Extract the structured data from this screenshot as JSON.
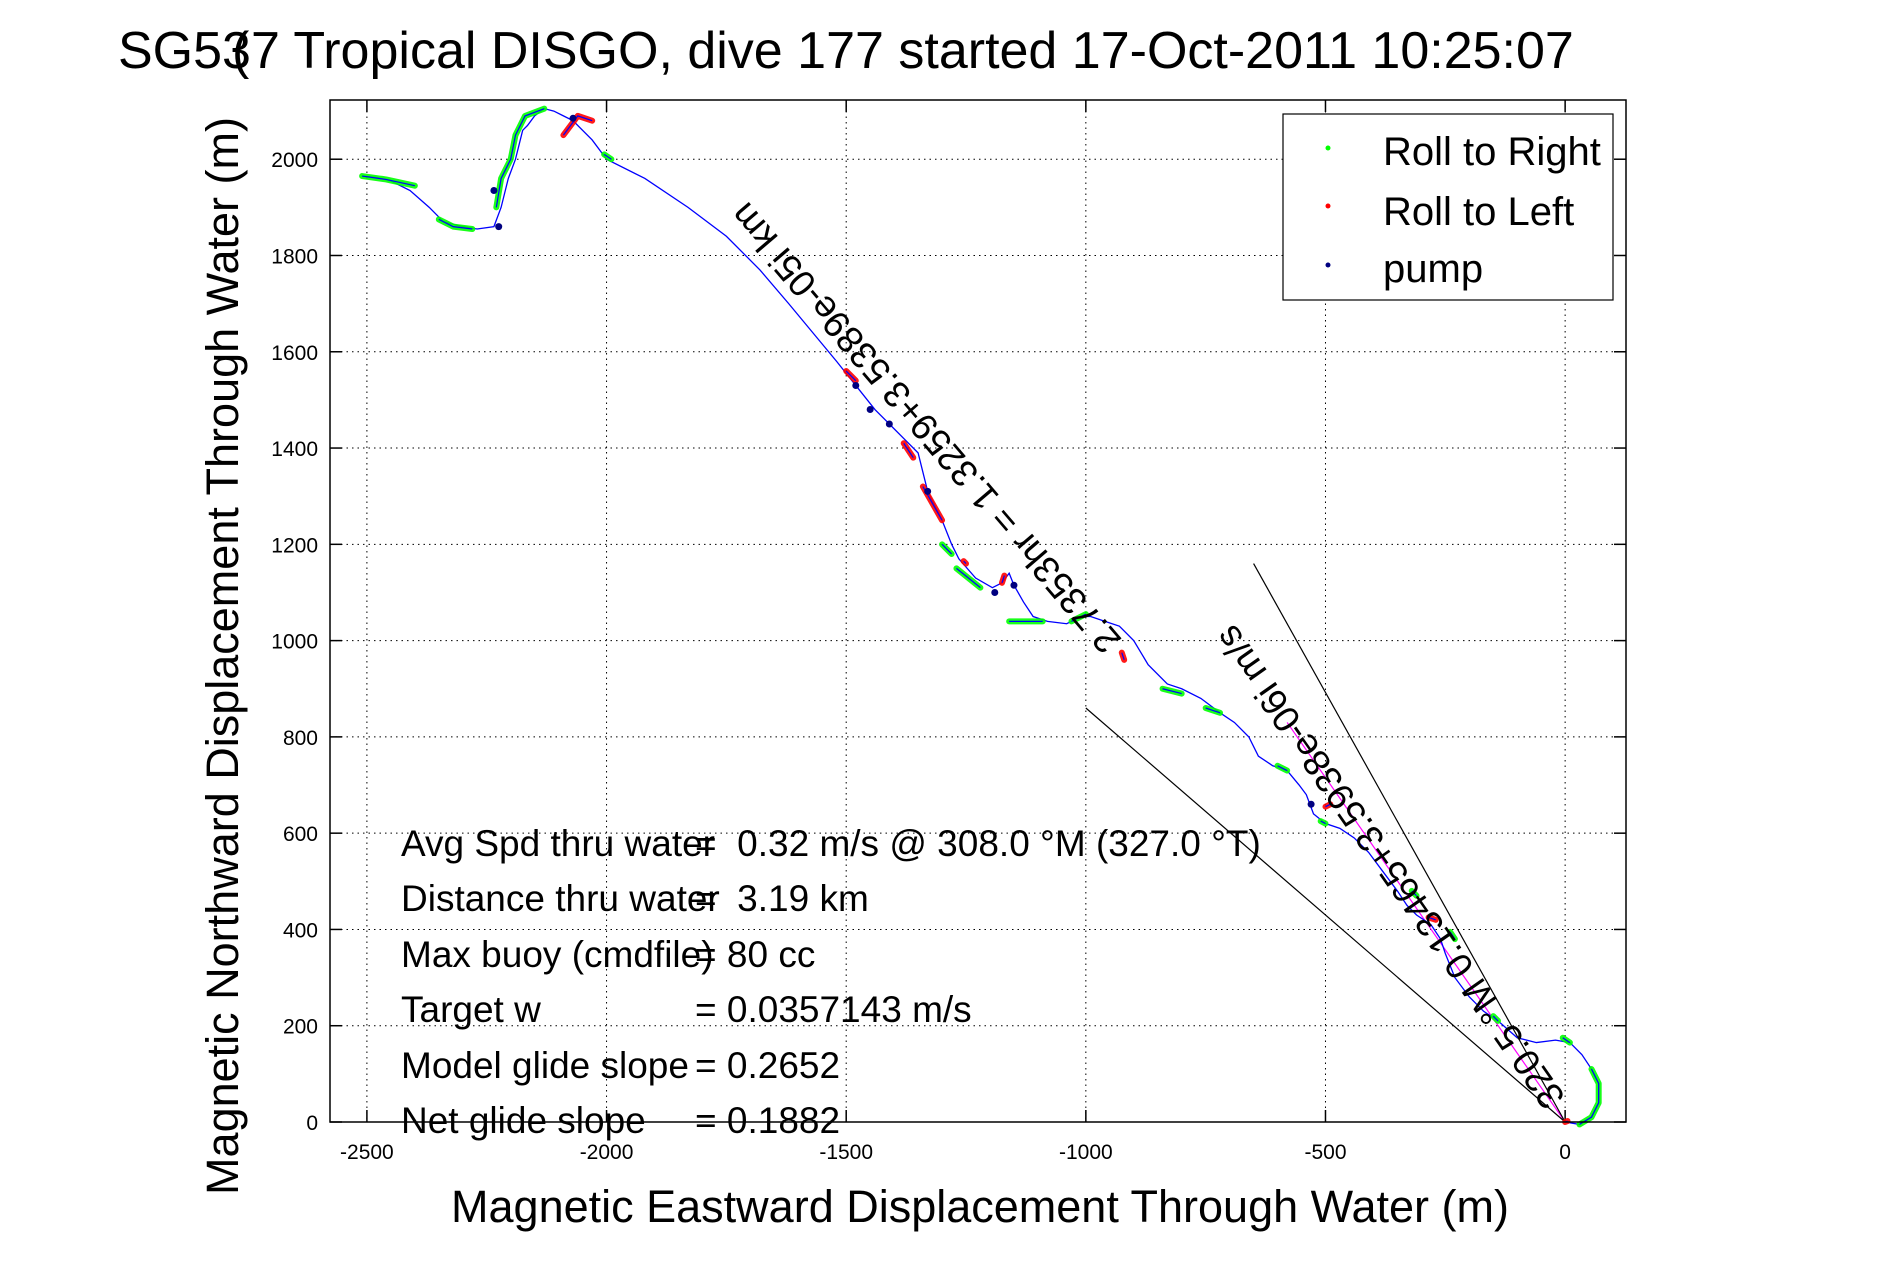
{
  "chart_data": {
    "type": "line",
    "title": "SG537 Tropical DISGO, dive 177 started 17-Oct-2011 10:25:07",
    "title_overlap_glyph": "(",
    "xlabel": "Magnetic Eastward Displacement Through Water (m)",
    "ylabel": "Magnetic Northward Displacement Through Water (m)",
    "xlim": [
      -2577,
      127
    ],
    "ylim": [
      0,
      2123
    ],
    "xticks": [
      -2500,
      -2000,
      -1500,
      -1000,
      -500,
      0
    ],
    "xtick_labels": [
      "-2500",
      "-2000",
      "-1500",
      "-1000",
      "-500",
      "0"
    ],
    "yticks": [
      0,
      200,
      400,
      600,
      800,
      1000,
      1200,
      1400,
      1600,
      1800,
      2000
    ],
    "ytick_labels": [
      "0",
      "200",
      "400",
      "600",
      "800",
      "1000",
      "1200",
      "1400",
      "1600",
      "1800",
      "2000"
    ],
    "grid": true,
    "legend_position": "top-right",
    "legend": [
      {
        "label": "Roll to Right",
        "color": "#00ff00",
        "marker": "dot"
      },
      {
        "label": "Roll to Left",
        "color": "#ff0000",
        "marker": "dot"
      },
      {
        "label": "pump",
        "color": "#000080",
        "marker": "dot"
      }
    ],
    "series": [
      {
        "name": "track",
        "color": "#0000ff",
        "points": [
          [
            0,
            0
          ],
          [
            30,
            -5
          ],
          [
            55,
            10
          ],
          [
            70,
            40
          ],
          [
            70,
            80
          ],
          [
            55,
            110
          ],
          [
            35,
            140
          ],
          [
            10,
            165
          ],
          [
            -20,
            170
          ],
          [
            -60,
            165
          ],
          [
            -100,
            175
          ],
          [
            -140,
            210
          ],
          [
            -170,
            230
          ],
          [
            -200,
            260
          ],
          [
            -230,
            300
          ],
          [
            -250,
            350
          ],
          [
            -260,
            380
          ],
          [
            -280,
            410
          ],
          [
            -310,
            430
          ],
          [
            -330,
            450
          ],
          [
            -350,
            480
          ],
          [
            -380,
            520
          ],
          [
            -410,
            560
          ],
          [
            -440,
            590
          ],
          [
            -470,
            610
          ],
          [
            -500,
            620
          ],
          [
            -525,
            640
          ],
          [
            -540,
            680
          ],
          [
            -555,
            700
          ],
          [
            -580,
            730
          ],
          [
            -610,
            740
          ],
          [
            -640,
            760
          ],
          [
            -660,
            800
          ],
          [
            -690,
            830
          ],
          [
            -720,
            850
          ],
          [
            -760,
            880
          ],
          [
            -800,
            900
          ],
          [
            -830,
            910
          ],
          [
            -870,
            950
          ],
          [
            -900,
            1000
          ],
          [
            -930,
            1030
          ],
          [
            -960,
            1040
          ],
          [
            -990,
            1050
          ],
          [
            -1010,
            1050
          ],
          [
            -1040,
            1035
          ],
          [
            -1080,
            1040
          ],
          [
            -1110,
            1050
          ],
          [
            -1130,
            1080
          ],
          [
            -1150,
            1115
          ],
          [
            -1160,
            1140
          ],
          [
            -1175,
            1120
          ],
          [
            -1195,
            1110
          ],
          [
            -1230,
            1130
          ],
          [
            -1265,
            1170
          ],
          [
            -1280,
            1200
          ],
          [
            -1300,
            1250
          ],
          [
            -1330,
            1310
          ],
          [
            -1350,
            1390
          ],
          [
            -1380,
            1420
          ],
          [
            -1410,
            1450
          ],
          [
            -1440,
            1480
          ],
          [
            -1480,
            1530
          ],
          [
            -1520,
            1580
          ],
          [
            -1570,
            1640
          ],
          [
            -1620,
            1700
          ],
          [
            -1680,
            1770
          ],
          [
            -1750,
            1840
          ],
          [
            -1830,
            1900
          ],
          [
            -1920,
            1960
          ],
          [
            -2000,
            2000
          ],
          [
            -2030,
            2040
          ],
          [
            -2070,
            2080
          ],
          [
            -2090,
            2090
          ],
          [
            -2110,
            2100
          ],
          [
            -2130,
            2105
          ],
          [
            -2150,
            2090
          ],
          [
            -2165,
            2070
          ],
          [
            -2175,
            2060
          ],
          [
            -2190,
            2000
          ],
          [
            -2205,
            1960
          ],
          [
            -2220,
            1900
          ],
          [
            -2235,
            1860
          ],
          [
            -2270,
            1855
          ],
          [
            -2300,
            1860
          ],
          [
            -2340,
            1870
          ],
          [
            -2370,
            1900
          ],
          [
            -2410,
            1935
          ],
          [
            -2450,
            1955
          ],
          [
            -2480,
            1962
          ],
          [
            -2510,
            1965
          ]
        ]
      }
    ],
    "roll_right_segments": [
      [
        [
          30,
          -5
        ],
        [
          55,
          10
        ],
        [
          70,
          40
        ],
        [
          70,
          80
        ],
        [
          55,
          110
        ]
      ],
      [
        [
          10,
          165
        ],
        [
          -5,
          175
        ]
      ],
      [
        [
          -140,
          210
        ],
        [
          -150,
          220
        ]
      ],
      [
        [
          -230,
          380
        ],
        [
          -240,
          395
        ]
      ],
      [
        [
          -310,
          470
        ],
        [
          -320,
          480
        ]
      ],
      [
        [
          -500,
          620
        ],
        [
          -510,
          625
        ]
      ],
      [
        [
          -580,
          730
        ],
        [
          -600,
          740
        ]
      ],
      [
        [
          -720,
          850
        ],
        [
          -750,
          860
        ]
      ],
      [
        [
          -800,
          890
        ],
        [
          -840,
          900
        ]
      ],
      [
        [
          -1000,
          1055
        ],
        [
          -1030,
          1040
        ]
      ],
      [
        [
          -1090,
          1040
        ],
        [
          -1160,
          1040
        ]
      ],
      [
        [
          -1220,
          1110
        ],
        [
          -1270,
          1150
        ]
      ],
      [
        [
          -1280,
          1180
        ],
        [
          -1300,
          1200
        ]
      ],
      [
        [
          -1990,
          2000
        ],
        [
          -2005,
          2010
        ]
      ],
      [
        [
          -2130,
          2105
        ],
        [
          -2170,
          2090
        ],
        [
          -2190,
          2050
        ],
        [
          -2200,
          2000
        ],
        [
          -2220,
          1960
        ],
        [
          -2230,
          1900
        ]
      ],
      [
        [
          -2280,
          1855
        ],
        [
          -2320,
          1860
        ],
        [
          -2350,
          1875
        ]
      ],
      [
        [
          -2400,
          1945
        ],
        [
          -2460,
          1958
        ],
        [
          -2510,
          1965
        ]
      ]
    ],
    "roll_left_segments": [
      [
        [
          0,
          0
        ],
        [
          5,
          2
        ]
      ],
      [
        [
          -270,
          420
        ],
        [
          -285,
          425
        ]
      ],
      [
        [
          -490,
          660
        ],
        [
          -500,
          655
        ]
      ],
      [
        [
          -920,
          960
        ],
        [
          -925,
          975
        ]
      ],
      [
        [
          -1170,
          1135
        ],
        [
          -1175,
          1120
        ]
      ],
      [
        [
          -1250,
          1160
        ],
        [
          -1255,
          1165
        ]
      ],
      [
        [
          -1300,
          1250
        ],
        [
          -1340,
          1320
        ]
      ],
      [
        [
          -1360,
          1380
        ],
        [
          -1380,
          1410
        ]
      ],
      [
        [
          -1480,
          1540
        ],
        [
          -1500,
          1560
        ]
      ],
      [
        [
          -2030,
          2080
        ],
        [
          -2060,
          2090
        ],
        [
          -2090,
          2050
        ]
      ]
    ],
    "pump_points": [
      [
        -530,
        660
      ],
      [
        -1150,
        1115
      ],
      [
        -1190,
        1100
      ],
      [
        -1330,
        1310
      ],
      [
        -1410,
        1450
      ],
      [
        -1450,
        1480
      ],
      [
        -1480,
        1530
      ],
      [
        -2225,
        1860
      ],
      [
        -2235,
        1935
      ],
      [
        -2070,
        2085
      ]
    ],
    "reference_lines": [
      {
        "name": "bearing-line",
        "color": "#ff00ff",
        "from": [
          0,
          0
        ],
        "to": [
          -580,
          830
        ]
      },
      {
        "name": "cone-line-upper",
        "color": "#000000",
        "from": [
          0,
          0
        ],
        "to": [
          -650,
          1160
        ]
      },
      {
        "name": "cone-line-lower",
        "color": "#000000",
        "from": [
          0,
          0
        ],
        "to": [
          -1000,
          860
        ]
      }
    ],
    "annotations": {
      "rotated_distance": "2.7353hr = 1.3259+3.5389e-05i km",
      "rotated_speed": "320.5 °M 0.13465+3.5938e-06i m/s"
    },
    "stats": [
      {
        "label": "Avg Spd thru water",
        "value": "=  0.32 m/s @ 308.0 °M (327.0 °T)"
      },
      {
        "label": "Distance thru water",
        "value": "=  3.19 km"
      },
      {
        "label": "Max buoy (cmdfile)",
        "value": "= 80 cc"
      },
      {
        "label": "Target w",
        "value": "= 0.0357143 m/s"
      },
      {
        "label": "Model glide slope",
        "value": "= 0.2652"
      },
      {
        "label": "Net glide slope",
        "value": "= 0.1882"
      }
    ]
  }
}
